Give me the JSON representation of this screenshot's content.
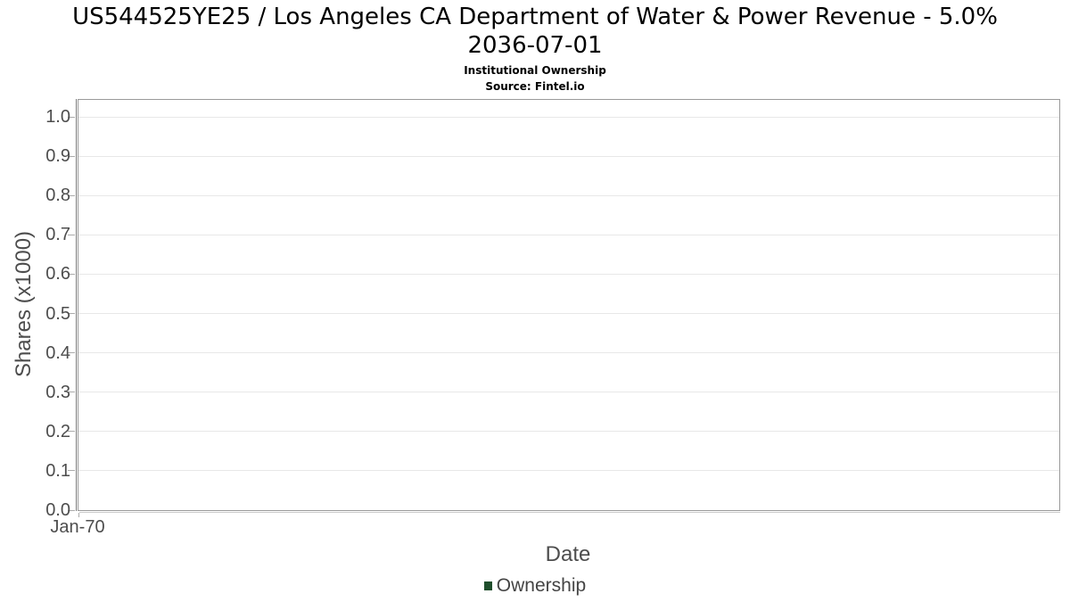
{
  "header": {
    "title_line1": "US544525YE25 / Los Angeles CA Department of Water & Power Revenue - 5.0%",
    "title_line2": "2036-07-01",
    "subtitle": "Institutional Ownership",
    "source": "Source: Fintel.io"
  },
  "chart_data": {
    "type": "line",
    "title": "US544525YE25 / Los Angeles CA Department of Water & Power Revenue - 5.0% 2036-07-01",
    "subtitle": "Institutional Ownership",
    "source": "Source: Fintel.io",
    "xlabel": "Date",
    "ylabel": "Shares (x1000)",
    "y_ticks": [
      "0.0",
      "0.1",
      "0.2",
      "0.3",
      "0.4",
      "0.5",
      "0.6",
      "0.7",
      "0.8",
      "0.9",
      "1.0"
    ],
    "ylim": [
      0.0,
      1.045
    ],
    "x_ticks": [
      {
        "label": "Jan-70",
        "frac": 0.0
      }
    ],
    "grid": true,
    "legend": {
      "position": "bottom-center",
      "entries": [
        {
          "label": "Ownership",
          "color": "#1f4e2c"
        }
      ]
    },
    "series": [
      {
        "name": "Ownership",
        "points": []
      }
    ]
  },
  "colors": {
    "plot_border": "#9a9a9a",
    "grid_line": "#e8e8e8",
    "axis_text": "#4d4d4d",
    "legend_marker": "#1f4e2c",
    "title_text": "#000000"
  }
}
